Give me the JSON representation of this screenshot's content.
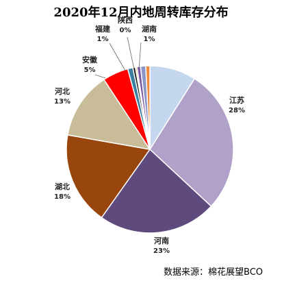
{
  "chart_data": {
    "type": "pie",
    "title": "2020年12月内地周转库存分布",
    "source": "数据来源：棉花展望BCO",
    "start_angle_deg": 0,
    "slices": [
      {
        "label": "",
        "value": 9,
        "value_label": "",
        "color": "#c5d7ef"
      },
      {
        "label": "江苏",
        "value": 28,
        "value_label": "28%",
        "color": "#b0a1c9"
      },
      {
        "label": "河南",
        "value": 23,
        "value_label": "23%",
        "color": "#5f4a7d"
      },
      {
        "label": "湖北",
        "value": 18,
        "value_label": "18%",
        "color": "#98460e"
      },
      {
        "label": "河北",
        "value": 13,
        "value_label": "13%",
        "color": "#c8bd98"
      },
      {
        "label": "安徽",
        "value": 5,
        "value_label": "5%",
        "color": "#ff0000"
      },
      {
        "label": "福建",
        "value": 1,
        "value_label": "1%",
        "color": "#3a7fa0"
      },
      {
        "label": "",
        "value": 0.5,
        "value_label": "",
        "color": "#1e1e1e"
      },
      {
        "label": "陕西",
        "value": 0.3,
        "value_label": "0%",
        "color": "#e8c080"
      },
      {
        "label": "",
        "value": 0.7,
        "value_label": "",
        "color": "#7e5aa6"
      },
      {
        "label": "湖南",
        "value": 1,
        "value_label": "1%",
        "color": "#8a96c8"
      },
      {
        "label": "",
        "value": 0.8,
        "value_label": "",
        "color": "#f08a3a"
      }
    ]
  }
}
